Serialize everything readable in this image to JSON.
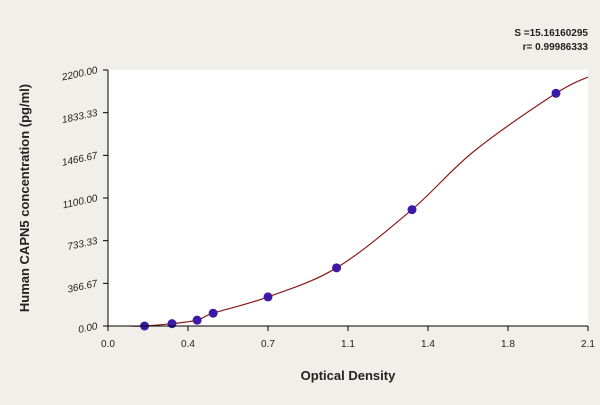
{
  "chart_data": {
    "type": "scatter",
    "xlabel": "Optical Density",
    "ylabel": "Human CAPN5 concentration (pg/ml)",
    "xlim": [
      0.0,
      2.1
    ],
    "ylim": [
      0.0,
      2200.0
    ],
    "x_ticks": [
      "0.0",
      "0.4",
      "0.7",
      "1.1",
      "1.4",
      "1.8",
      "2.1"
    ],
    "x_tick_values": [
      0.0,
      0.35,
      0.7,
      1.05,
      1.4,
      1.75,
      2.1
    ],
    "y_ticks": [
      "0.00",
      "366.67",
      "733.33",
      "1100.00",
      "1466.67",
      "1833.33",
      "2200.00"
    ],
    "y_tick_values": [
      0.0,
      366.67,
      733.33,
      1100.0,
      1466.67,
      1833.33,
      2200.0
    ],
    "grid": false,
    "points": {
      "x": [
        0.16,
        0.28,
        0.39,
        0.46,
        0.7,
        1.0,
        1.33,
        1.96
      ],
      "y": [
        0,
        20,
        50,
        110,
        250,
        500,
        1000,
        2000
      ]
    },
    "fit_curve": {
      "x": [
        0.1,
        0.16,
        0.28,
        0.39,
        0.46,
        0.7,
        1.0,
        1.33,
        1.6,
        1.96,
        2.1
      ],
      "y": [
        -10,
        0,
        20,
        50,
        110,
        250,
        500,
        1000,
        1500,
        2000,
        2140
      ]
    },
    "stats": {
      "s": "S =15.16160295",
      "r": "r= 0.99986333"
    },
    "colors": {
      "background": "#f0efe9",
      "plot_background": "#ffffff",
      "curve": "#8b1a1a",
      "points": "#3b1aa8"
    }
  }
}
